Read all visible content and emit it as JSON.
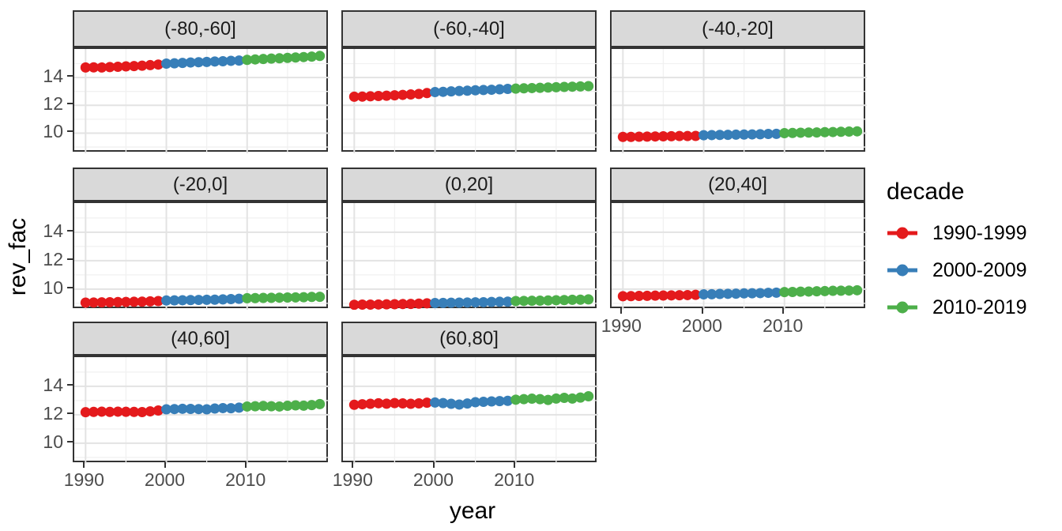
{
  "chart": {
    "x_title": "year",
    "y_title": "rev_fac",
    "x_ticks": [
      1990,
      2000,
      2010
    ],
    "y_ticks": [
      10,
      12,
      14
    ],
    "x_domain": [
      1988.6,
      2020.2
    ],
    "y_domain": [
      8.55,
      16.05
    ],
    "grid": "on",
    "colors": {
      "point_red": "#E41A1C",
      "point_blue": "#377EB8",
      "point_green": "#4DAF4A",
      "strip_bg": "#D9D9D9",
      "panel_border": "#333333",
      "grid_major": "#E3E3E3",
      "grid_minor": "#F1F1F1"
    }
  },
  "legend": {
    "title": "decade",
    "entries": [
      {
        "label": "1990-1999",
        "color": "#E41A1C"
      },
      {
        "label": "2000-2009",
        "color": "#377EB8"
      },
      {
        "label": "2010-2019",
        "color": "#4DAF4A"
      }
    ]
  },
  "chart_data": {
    "type": "scatter",
    "title": "",
    "xlabel": "year",
    "ylabel": "rev_fac",
    "legend_position": "right",
    "x": [
      1990,
      1991,
      1992,
      1993,
      1994,
      1995,
      1996,
      1997,
      1998,
      1999,
      2000,
      2001,
      2002,
      2003,
      2004,
      2005,
      2006,
      2007,
      2008,
      2009,
      2010,
      2011,
      2012,
      2013,
      2014,
      2015,
      2016,
      2017,
      2018,
      2019
    ],
    "series": [
      {
        "name": "1990-1999",
        "year_from": 1990,
        "year_to": 1999,
        "color": "#E41A1C"
      },
      {
        "name": "2000-2009",
        "year_from": 2000,
        "year_to": 2009,
        "color": "#377EB8"
      },
      {
        "name": "2010-2019",
        "year_from": 2010,
        "year_to": 2019,
        "color": "#4DAF4A"
      }
    ],
    "facets": [
      {
        "label": "(-80,-60]",
        "values": [
          14.72,
          14.73,
          14.72,
          14.75,
          14.77,
          14.8,
          14.82,
          14.85,
          14.89,
          14.93,
          15.0,
          15.02,
          15.05,
          15.08,
          15.1,
          15.12,
          15.15,
          15.17,
          15.2,
          15.22,
          15.27,
          15.3,
          15.33,
          15.36,
          15.38,
          15.41,
          15.44,
          15.47,
          15.5,
          15.55
        ]
      },
      {
        "label": "(-60,-40]",
        "values": [
          12.62,
          12.63,
          12.65,
          12.67,
          12.69,
          12.72,
          12.75,
          12.78,
          12.82,
          12.88,
          12.95,
          12.97,
          13.0,
          13.03,
          13.05,
          13.08,
          13.1,
          13.12,
          13.15,
          13.18,
          13.2,
          13.22,
          13.24,
          13.26,
          13.28,
          13.3,
          13.32,
          13.34,
          13.36,
          13.38
        ]
      },
      {
        "label": "(-40,-20]",
        "values": [
          9.73,
          9.73,
          9.74,
          9.75,
          9.76,
          9.77,
          9.78,
          9.79,
          9.79,
          9.8,
          9.85,
          9.86,
          9.87,
          9.88,
          9.89,
          9.9,
          9.91,
          9.92,
          9.94,
          9.95,
          10.0,
          10.01,
          10.03,
          10.04,
          10.05,
          10.07,
          10.08,
          10.1,
          10.11,
          10.13
        ]
      },
      {
        "label": "(-20,0]",
        "values": [
          9.05,
          9.06,
          9.07,
          9.08,
          9.09,
          9.1,
          9.11,
          9.12,
          9.14,
          9.16,
          9.2,
          9.21,
          9.22,
          9.23,
          9.24,
          9.25,
          9.26,
          9.28,
          9.3,
          9.32,
          9.36,
          9.37,
          9.38,
          9.39,
          9.4,
          9.41,
          9.42,
          9.43,
          9.45,
          9.46
        ]
      },
      {
        "label": "(0,20]",
        "values": [
          8.9,
          8.91,
          8.91,
          8.92,
          8.93,
          8.94,
          8.95,
          8.96,
          8.98,
          9.0,
          9.02,
          9.03,
          9.04,
          9.05,
          9.06,
          9.07,
          9.08,
          9.1,
          9.11,
          9.12,
          9.16,
          9.17,
          9.18,
          9.19,
          9.2,
          9.22,
          9.23,
          9.25,
          9.26,
          9.28
        ]
      },
      {
        "label": "(20,40]",
        "values": [
          9.5,
          9.51,
          9.52,
          9.53,
          9.54,
          9.55,
          9.56,
          9.57,
          9.58,
          9.6,
          9.63,
          9.64,
          9.66,
          9.67,
          9.68,
          9.7,
          9.71,
          9.72,
          9.74,
          9.75,
          9.79,
          9.8,
          9.82,
          9.83,
          9.85,
          9.86,
          9.88,
          9.89,
          9.9,
          9.92
        ]
      },
      {
        "label": "(40,60]",
        "values": [
          12.18,
          12.2,
          12.22,
          12.2,
          12.22,
          12.21,
          12.2,
          12.19,
          12.24,
          12.3,
          12.38,
          12.4,
          12.42,
          12.41,
          12.4,
          12.38,
          12.44,
          12.47,
          12.46,
          12.5,
          12.58,
          12.6,
          12.62,
          12.6,
          12.58,
          12.63,
          12.66,
          12.64,
          12.68,
          12.75
        ]
      },
      {
        "label": "(60,80]",
        "values": [
          12.7,
          12.74,
          12.77,
          12.81,
          12.78,
          12.82,
          12.8,
          12.77,
          12.8,
          12.85,
          12.86,
          12.82,
          12.77,
          12.72,
          12.79,
          12.88,
          12.91,
          12.94,
          12.96,
          12.98,
          13.06,
          13.1,
          13.13,
          13.1,
          13.04,
          13.14,
          13.19,
          13.14,
          13.21,
          13.3
        ]
      }
    ]
  }
}
